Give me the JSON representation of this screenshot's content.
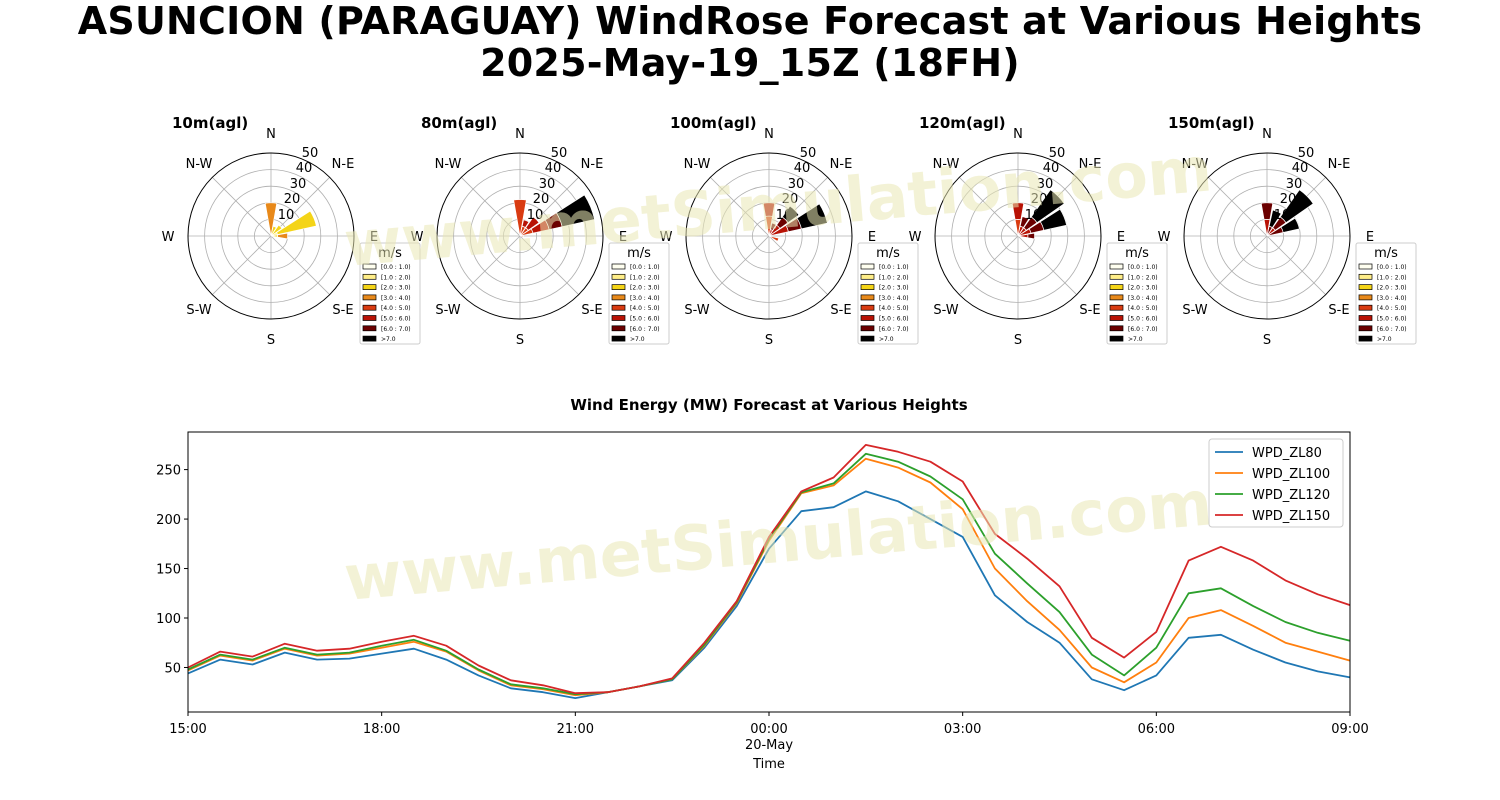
{
  "title": {
    "line1": "ASUNCION (PARAGUAY) WindRose Forecast at Various Heights",
    "line2": "2025-May-19_15Z (18FH)"
  },
  "watermark": "www.metSimulation.com",
  "chart_data": [
    {
      "type": "windrose",
      "title": "10m(agl)",
      "directions": [
        "N",
        "N-E",
        "E",
        "S-E",
        "S",
        "S-W",
        "W",
        "N-W"
      ],
      "radial_ticks": [
        10,
        20,
        30,
        40,
        50
      ],
      "rmax": 50,
      "petals": [
        {
          "direction_deg": 0,
          "bins": [
            {
              "bin": "[3.0 : 4.0)",
              "value": 20
            }
          ]
        },
        {
          "direction_deg": 22.5,
          "bins": [
            {
              "bin": "[2.0 : 3.0)",
              "value": 6
            }
          ]
        },
        {
          "direction_deg": 45,
          "bins": [
            {
              "bin": "[2.0 : 3.0)",
              "value": 8
            }
          ]
        },
        {
          "direction_deg": 67.5,
          "bins": [
            {
              "bin": "[1.0 : 2.0)",
              "value": 4
            },
            {
              "bin": "[2.0 : 3.0)",
              "value": 24
            }
          ]
        },
        {
          "direction_deg": 90,
          "bins": [
            {
              "bin": "[2.0 : 3.0)",
              "value": 4
            },
            {
              "bin": "[3.0 : 4.0)",
              "value": 6
            }
          ]
        }
      ],
      "legend": {
        "title": "m/s",
        "entries": [
          "[0.0 : 1.0)",
          "[1.0 : 2.0)",
          "[2.0 : 3.0)",
          "[3.0 : 4.0)",
          "[4.0 : 5.0)",
          "[5.0 : 6.0)",
          "[6.0 : 7.0)",
          ">7.0"
        ],
        "colors": [
          "#fffff0",
          "#ffee88",
          "#f4d417",
          "#e8891a",
          "#d93b11",
          "#b81205",
          "#6b0000",
          "#000000"
        ]
      }
    },
    {
      "type": "windrose",
      "title": "80m(agl)",
      "directions": [
        "N",
        "N-E",
        "E",
        "S-E",
        "S",
        "S-W",
        "W",
        "N-W"
      ],
      "radial_ticks": [
        10,
        20,
        30,
        40,
        50
      ],
      "rmax": 50,
      "petals": [
        {
          "direction_deg": 0,
          "bins": [
            {
              "bin": "[4.0 : 5.0)",
              "value": 22
            }
          ]
        },
        {
          "direction_deg": 22.5,
          "bins": [
            {
              "bin": "[4.0 : 5.0)",
              "value": 6
            },
            {
              "bin": "[5.0 : 6.0)",
              "value": 4
            }
          ]
        },
        {
          "direction_deg": 45,
          "bins": [
            {
              "bin": "[4.0 : 5.0)",
              "value": 6
            },
            {
              "bin": "[5.0 : 6.0)",
              "value": 8
            }
          ]
        },
        {
          "direction_deg": 67.5,
          "bins": [
            {
              "bin": "[4.0 : 5.0)",
              "value": 8
            },
            {
              "bin": "[5.0 : 6.0)",
              "value": 10
            },
            {
              "bin": "[6.0 : 7.0)",
              "value": 8
            },
            {
              "bin": ">7.0",
              "value": 20
            }
          ]
        },
        {
          "direction_deg": 90,
          "bins": [
            {
              "bin": "[4.0 : 5.0)",
              "value": 2
            }
          ]
        }
      ],
      "legend": {
        "title": "m/s",
        "entries": [
          "[0.0 : 1.0)",
          "[1.0 : 2.0)",
          "[2.0 : 3.0)",
          "[3.0 : 4.0)",
          "[4.0 : 5.0)",
          "[5.0 : 6.0)",
          "[6.0 : 7.0)",
          ">7.0"
        ],
        "colors": [
          "#fffff0",
          "#ffee88",
          "#f4d417",
          "#e8891a",
          "#d93b11",
          "#b81205",
          "#6b0000",
          "#000000"
        ]
      }
    },
    {
      "type": "windrose",
      "title": "100m(agl)",
      "directions": [
        "N",
        "N-E",
        "E",
        "S-E",
        "S",
        "S-W",
        "W",
        "N-W"
      ],
      "radial_ticks": [
        10,
        20,
        30,
        40,
        50
      ],
      "rmax": 50,
      "petals": [
        {
          "direction_deg": 0,
          "bins": [
            {
              "bin": "[4.0 : 5.0)",
              "value": 12
            },
            {
              "bin": "[5.0 : 6.0)",
              "value": 8
            }
          ]
        },
        {
          "direction_deg": 22.5,
          "bins": [
            {
              "bin": "[5.0 : 6.0)",
              "value": 4
            },
            {
              "bin": "[6.0 : 7.0)",
              "value": 4
            }
          ]
        },
        {
          "direction_deg": 45,
          "bins": [
            {
              "bin": "[5.0 : 6.0)",
              "value": 8
            },
            {
              "bin": "[6.0 : 7.0)",
              "value": 6
            },
            {
              "bin": ">7.0",
              "value": 8
            }
          ]
        },
        {
          "direction_deg": 67.5,
          "bins": [
            {
              "bin": "[5.0 : 6.0)",
              "value": 12
            },
            {
              "bin": "[6.0 : 7.0)",
              "value": 8
            },
            {
              "bin": ">7.0",
              "value": 16
            }
          ]
        },
        {
          "direction_deg": 112.5,
          "bins": [
            {
              "bin": "[4.0 : 5.0)",
              "value": 6
            }
          ]
        }
      ],
      "legend": {
        "title": "m/s",
        "entries": [
          "[0.0 : 1.0)",
          "[1.0 : 2.0)",
          "[2.0 : 3.0)",
          "[3.0 : 4.0)",
          "[4.0 : 5.0)",
          "[5.0 : 6.0)",
          "[6.0 : 7.0)",
          ">7.0"
        ],
        "colors": [
          "#fffff0",
          "#ffee88",
          "#f4d417",
          "#e8891a",
          "#d93b11",
          "#b81205",
          "#6b0000",
          "#000000"
        ]
      }
    },
    {
      "type": "windrose",
      "title": "120m(agl)",
      "directions": [
        "N",
        "N-E",
        "E",
        "S-E",
        "S",
        "S-W",
        "W",
        "N-W"
      ],
      "radial_ticks": [
        10,
        20,
        30,
        40,
        50
      ],
      "rmax": 50,
      "petals": [
        {
          "direction_deg": 0,
          "bins": [
            {
              "bin": "[4.0 : 5.0)",
              "value": 10
            },
            {
              "bin": "[5.0 : 6.0)",
              "value": 10
            }
          ]
        },
        {
          "direction_deg": 22.5,
          "bins": [
            {
              "bin": "[5.0 : 6.0)",
              "value": 6
            },
            {
              "bin": "[6.0 : 7.0)",
              "value": 6
            }
          ]
        },
        {
          "direction_deg": 45,
          "bins": [
            {
              "bin": "[5.0 : 6.0)",
              "value": 6
            },
            {
              "bin": "[6.0 : 7.0)",
              "value": 8
            },
            {
              "bin": ">7.0",
              "value": 20
            }
          ]
        },
        {
          "direction_deg": 67.5,
          "bins": [
            {
              "bin": "[5.0 : 6.0)",
              "value": 8
            },
            {
              "bin": "[6.0 : 7.0)",
              "value": 8
            },
            {
              "bin": ">7.0",
              "value": 14
            }
          ]
        },
        {
          "direction_deg": 90,
          "bins": [
            {
              "bin": "[5.0 : 6.0)",
              "value": 6
            },
            {
              "bin": "[6.0 : 7.0)",
              "value": 4
            }
          ]
        }
      ],
      "legend": {
        "title": "m/s",
        "entries": [
          "[0.0 : 1.0)",
          "[1.0 : 2.0)",
          "[2.0 : 3.0)",
          "[3.0 : 4.0)",
          "[4.0 : 5.0)",
          "[5.0 : 6.0)",
          "[6.0 : 7.0)",
          ">7.0"
        ],
        "colors": [
          "#fffff0",
          "#ffee88",
          "#f4d417",
          "#e8891a",
          "#d93b11",
          "#b81205",
          "#6b0000",
          "#000000"
        ]
      }
    },
    {
      "type": "windrose",
      "title": "150m(agl)",
      "directions": [
        "N",
        "N-E",
        "E",
        "S-E",
        "S",
        "S-W",
        "W",
        "N-W"
      ],
      "radial_ticks": [
        10,
        20,
        30,
        40,
        50
      ],
      "rmax": 50,
      "petals": [
        {
          "direction_deg": 0,
          "bins": [
            {
              "bin": "[5.0 : 6.0)",
              "value": 10
            },
            {
              "bin": "[6.0 : 7.0)",
              "value": 10
            }
          ]
        },
        {
          "direction_deg": 22.5,
          "bins": [
            {
              "bin": "[6.0 : 7.0)",
              "value": 6
            },
            {
              "bin": ">7.0",
              "value": 10
            }
          ]
        },
        {
          "direction_deg": 45,
          "bins": [
            {
              "bin": "[5.0 : 6.0)",
              "value": 6
            },
            {
              "bin": "[6.0 : 7.0)",
              "value": 8
            },
            {
              "bin": ">7.0",
              "value": 20
            }
          ]
        },
        {
          "direction_deg": 67.5,
          "bins": [
            {
              "bin": "[6.0 : 7.0)",
              "value": 10
            },
            {
              "bin": ">7.0",
              "value": 10
            }
          ]
        }
      ],
      "legend": {
        "title": "m/s",
        "entries": [
          "[0.0 : 1.0)",
          "[1.0 : 2.0)",
          "[2.0 : 3.0)",
          "[3.0 : 4.0)",
          "[4.0 : 5.0)",
          "[5.0 : 6.0)",
          "[6.0 : 7.0)",
          ">7.0"
        ],
        "colors": [
          "#fffff0",
          "#ffee88",
          "#f4d417",
          "#e8891a",
          "#d93b11",
          "#b81205",
          "#6b0000",
          "#000000"
        ]
      }
    },
    {
      "type": "line",
      "title": "Wind Energy (MW) Forecast at Various Heights",
      "xlabel": "Time",
      "ylabel": "",
      "x_hours": [
        0,
        0.5,
        1,
        1.5,
        2,
        2.5,
        3,
        3.5,
        4,
        4.5,
        5,
        5.5,
        6,
        6.5,
        7,
        7.5,
        8,
        8.5,
        9,
        9.5,
        10,
        10.5,
        11,
        11.5,
        12,
        12.5,
        13,
        13.5,
        14,
        14.5,
        15,
        15.5,
        16,
        16.5,
        17,
        17.5,
        18
      ],
      "xlim_hours": [
        0,
        18
      ],
      "x_tick_labels": [
        "15:00",
        "18:00",
        "21:00",
        "00:00\n20-May",
        "03:00",
        "06:00",
        "09:00"
      ],
      "x_ticks_hours": [
        0,
        3,
        6,
        9,
        12,
        15,
        18
      ],
      "ylim": [
        5,
        288
      ],
      "y_ticks": [
        50,
        100,
        150,
        200,
        250
      ],
      "legend_position": "top-right",
      "series": [
        {
          "name": "WPD_ZL80",
          "color": "#1f77b4",
          "values": [
            44,
            58,
            53,
            65,
            58,
            59,
            64,
            69,
            58,
            42,
            29,
            25,
            19,
            25,
            31,
            37,
            70,
            112,
            170,
            208,
            212,
            228,
            218,
            200,
            182,
            123,
            96,
            75,
            38,
            27,
            42,
            80,
            83,
            68,
            55,
            46,
            40
          ]
        },
        {
          "name": "WPD_ZL100",
          "color": "#ff7f0e",
          "values": [
            47,
            62,
            57,
            69,
            62,
            64,
            70,
            76,
            66,
            47,
            32,
            28,
            22,
            25,
            31,
            38,
            72,
            115,
            178,
            226,
            234,
            261,
            252,
            237,
            210,
            150,
            117,
            88,
            50,
            35,
            55,
            100,
            108,
            92,
            75,
            66,
            57
          ]
        },
        {
          "name": "WPD_ZL120",
          "color": "#2ca02c",
          "values": [
            48,
            63,
            58,
            70,
            63,
            65,
            72,
            78,
            67,
            48,
            33,
            29,
            23,
            25,
            31,
            38,
            73,
            116,
            180,
            227,
            236,
            266,
            258,
            243,
            220,
            165,
            135,
            106,
            63,
            42,
            70,
            125,
            130,
            112,
            96,
            85,
            77
          ]
        },
        {
          "name": "WPD_ZL150",
          "color": "#d62728",
          "values": [
            50,
            66,
            61,
            74,
            67,
            69,
            76,
            82,
            72,
            52,
            37,
            32,
            24,
            25,
            31,
            39,
            75,
            117,
            182,
            228,
            242,
            275,
            268,
            258,
            238,
            185,
            160,
            132,
            80,
            60,
            86,
            158,
            172,
            158,
            138,
            124,
            113
          ]
        }
      ]
    }
  ]
}
